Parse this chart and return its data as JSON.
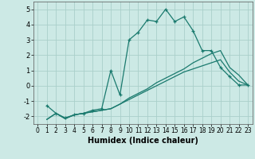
{
  "xlabel": "Humidex (Indice chaleur)",
  "bg_color": "#cce9e5",
  "grid_color": "#aacfca",
  "line_color": "#1a7a6e",
  "xlim": [
    -0.5,
    23.5
  ],
  "ylim": [
    -2.5,
    5.5
  ],
  "yticks": [
    -2,
    -1,
    0,
    1,
    2,
    3,
    4,
    5
  ],
  "xticks": [
    0,
    1,
    2,
    3,
    4,
    5,
    6,
    7,
    8,
    9,
    10,
    11,
    12,
    13,
    14,
    15,
    16,
    17,
    18,
    19,
    20,
    21,
    22,
    23
  ],
  "series1_x": [
    1,
    2,
    3,
    4,
    5,
    6,
    7,
    8,
    9,
    10,
    11,
    12,
    13,
    14,
    15,
    16,
    17,
    18,
    19,
    20,
    21,
    22,
    23
  ],
  "series1_y": [
    -1.3,
    -1.8,
    -2.1,
    -1.9,
    -1.8,
    -1.6,
    -1.5,
    1.0,
    -0.6,
    3.0,
    3.5,
    4.3,
    4.2,
    5.0,
    4.2,
    4.5,
    3.6,
    2.3,
    2.3,
    1.2,
    0.6,
    0.05,
    0.05
  ],
  "series2_x": [
    1,
    2,
    3,
    4,
    5,
    6,
    7,
    8,
    9,
    10,
    11,
    12,
    13,
    14,
    15,
    16,
    17,
    18,
    19,
    20,
    21,
    22,
    23
  ],
  "series2_y": [
    -2.2,
    -1.8,
    -2.15,
    -1.9,
    -1.8,
    -1.7,
    -1.6,
    -1.5,
    -1.2,
    -0.8,
    -0.5,
    -0.2,
    0.2,
    0.5,
    0.8,
    1.1,
    1.5,
    1.8,
    2.1,
    2.3,
    1.2,
    0.7,
    0.05
  ],
  "series3_x": [
    1,
    2,
    3,
    4,
    5,
    6,
    7,
    8,
    9,
    10,
    11,
    12,
    13,
    14,
    15,
    16,
    17,
    18,
    19,
    20,
    21,
    22,
    23
  ],
  "series3_y": [
    -2.2,
    -1.8,
    -2.15,
    -1.9,
    -1.8,
    -1.7,
    -1.6,
    -1.5,
    -1.2,
    -0.9,
    -0.6,
    -0.3,
    0.0,
    0.3,
    0.6,
    0.9,
    1.1,
    1.3,
    1.5,
    1.7,
    0.9,
    0.3,
    0.05
  ]
}
